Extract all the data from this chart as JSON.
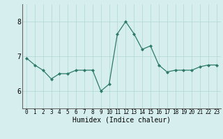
{
  "x": [
    0,
    1,
    2,
    3,
    4,
    5,
    6,
    7,
    8,
    9,
    10,
    11,
    12,
    13,
    14,
    15,
    16,
    17,
    18,
    19,
    20,
    21,
    22,
    23
  ],
  "y": [
    6.95,
    6.75,
    6.6,
    6.35,
    6.5,
    6.5,
    6.6,
    6.6,
    6.6,
    6.0,
    6.2,
    7.65,
    8.0,
    7.65,
    7.2,
    7.3,
    6.75,
    6.55,
    6.6,
    6.6,
    6.6,
    6.7,
    6.75,
    6.75
  ],
  "line_color": "#2d7a6b",
  "marker_color": "#2d7a6b",
  "bg_color": "#d6efee",
  "grid_color": "#b0d8d5",
  "xlabel": "Humidex (Indice chaleur)",
  "ylim": [
    5.5,
    8.5
  ],
  "yticks": [
    6,
    7,
    8
  ],
  "xtick_labels": [
    "0",
    "1",
    "2",
    "3",
    "4",
    "5",
    "6",
    "7",
    "8",
    "9",
    "10",
    "11",
    "12",
    "13",
    "14",
    "15",
    "16",
    "17",
    "18",
    "19",
    "20",
    "21",
    "22",
    "23"
  ],
  "xlim": [
    -0.5,
    23.5
  ],
  "xfontsize": 5.5,
  "yfontsize": 7,
  "xlabel_fontsize": 7
}
